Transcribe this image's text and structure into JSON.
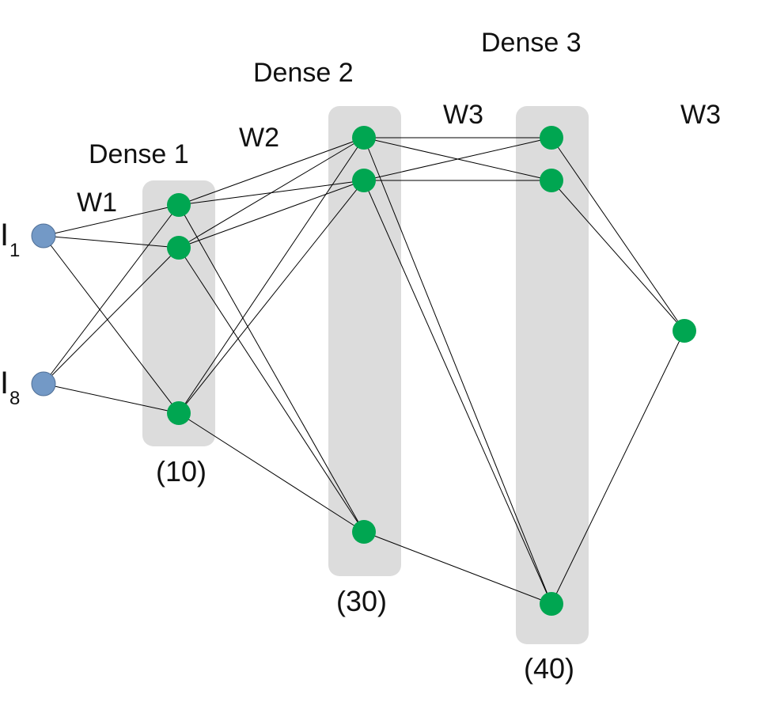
{
  "labels": {
    "dense1": "Dense 1",
    "dense2": "Dense 2",
    "dense3": "Dense 3",
    "w1": "W1",
    "w2": "W2",
    "w3_a": "W3",
    "w3_b": "W3",
    "size1": "(10)",
    "size2": "(30)",
    "size3": "(40)",
    "input1_letter": "I",
    "input1_sub": "1",
    "input8_letter": "I",
    "input8_sub": "8"
  },
  "colors": {
    "input_node": "#7399c6",
    "dense_node": "#00a651",
    "layer_band": "#dcdcdc",
    "edge": "#000000"
  }
}
